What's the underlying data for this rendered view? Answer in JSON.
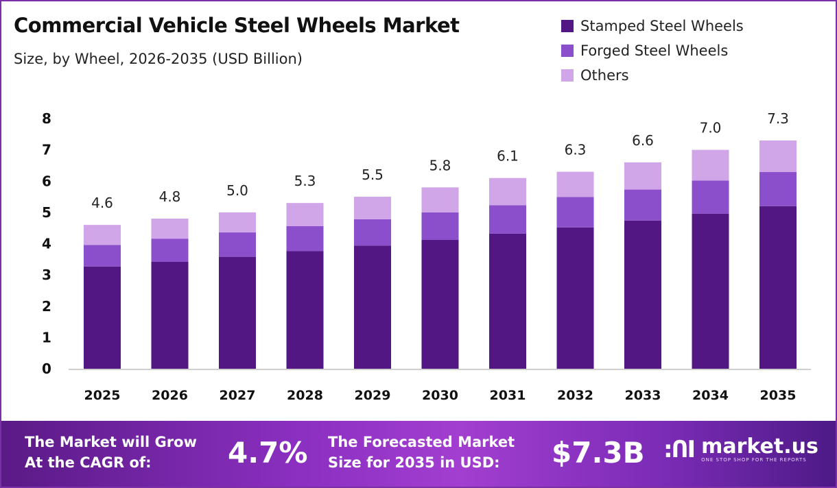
{
  "chart_data": {
    "type": "bar",
    "stacked": true,
    "title": "Commercial Vehicle Steel Wheels Market",
    "subtitle": "Size, by Wheel, 2026-2035 (USD Billion)",
    "xlabel": "",
    "ylabel": "",
    "ylim": [
      0,
      8
    ],
    "yticks": [
      "0",
      "1",
      "2",
      "3",
      "4",
      "5",
      "6",
      "7",
      "8"
    ],
    "grid": false,
    "legend_position": "top-right",
    "categories": [
      "2025",
      "2026",
      "2027",
      "2028",
      "2029",
      "2030",
      "2031",
      "2032",
      "2033",
      "2034",
      "2035"
    ],
    "series": [
      {
        "name": "Stamped Steel Wheels",
        "color": "#521782",
        "values": [
          3.27,
          3.42,
          3.58,
          3.76,
          3.94,
          4.12,
          4.32,
          4.52,
          4.74,
          4.96,
          5.2
        ]
      },
      {
        "name": "Forged Steel Wheels",
        "color": "#8c4fcb",
        "values": [
          0.69,
          0.74,
          0.78,
          0.8,
          0.84,
          0.88,
          0.91,
          0.97,
          0.99,
          1.06,
          1.09
        ]
      },
      {
        "name": "Others",
        "color": "#d0a6e8",
        "values": [
          0.64,
          0.64,
          0.64,
          0.74,
          0.72,
          0.8,
          0.87,
          0.81,
          0.87,
          0.98,
          1.01
        ]
      }
    ],
    "totals": [
      "4.6",
      "4.8",
      "5.0",
      "5.3",
      "5.5",
      "5.8",
      "6.1",
      "6.3",
      "6.6",
      "7.0",
      "7.3"
    ]
  },
  "footer": {
    "cagr_label_line1": "The Market will Grow",
    "cagr_label_line2": "At the CAGR of:",
    "cagr_value": "4.7%",
    "forecast_label_line1": "The Forecasted Market",
    "forecast_label_line2": "Size for 2035 in USD:",
    "forecast_value": "$7.3B",
    "brand_name": "market.us",
    "brand_tagline": "ONE STOP SHOP FOR THE REPORTS"
  }
}
